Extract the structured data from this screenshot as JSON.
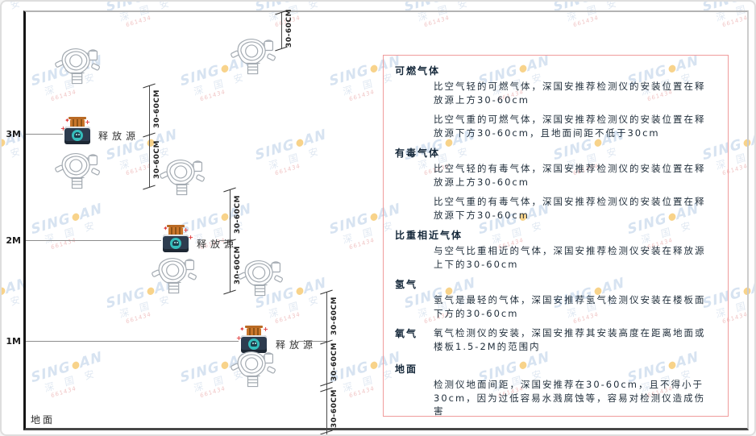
{
  "watermark": {
    "brand_left": "SING",
    "brand_right": "AN",
    "dot_color": "#f3b02c",
    "cn_text": "深 国 安",
    "red_text": "661434"
  },
  "diagram": {
    "height_labels": [
      "3M",
      "2M",
      "1M"
    ],
    "ground_label": "地面",
    "release_source_label": "释放源",
    "dim_label": "30-60CM"
  },
  "panel": {
    "border_color": "#f09c9c",
    "sections": [
      {
        "heading": "可燃气体",
        "paras": [
          "比空气轻的可燃气体，深国安推荐检测仪的安装位置在释放源上方30-60cm",
          "比空气重的可燃气体，深国安推荐检测仪的安装位置在释放源下方30-60cm，且地面间距不低于30cm"
        ]
      },
      {
        "heading": "有毒气体",
        "paras": [
          "比空气轻的有毒气体，深国安推荐检测仪的安装位置在释放源上方30-60cm",
          "比空气重的有毒气体，深国安推荐检测仪的安装位置在释放源下方30-60cm"
        ]
      },
      {
        "heading": "比重相近气体",
        "paras": [
          "与空气比重相近的气体，深国安推荐检测仪安装在释放源上下的30-60cm"
        ]
      },
      {
        "heading": "氢气",
        "paras": [
          "氢气是最轻的气体，深国安推荐氢气检测仪安装在楼板面下方的30-60cm"
        ]
      },
      {
        "heading": "氧气",
        "inline": true,
        "paras": [
          "氧气检测仪的安装，深国安推荐其安装高度在距离地面或楼板1.5-2M的范围内"
        ]
      },
      {
        "heading": "地面",
        "paras": [
          "检测仪地面间距，深国安推荐在30-60cm，且不得小于30cm，因为过低容易水溅腐蚀等，容易对检测仪造成伤害"
        ]
      }
    ]
  }
}
